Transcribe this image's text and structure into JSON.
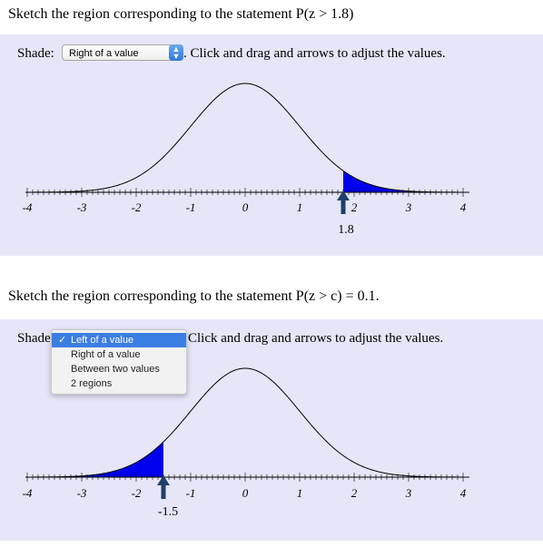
{
  "problem1": {
    "title": "Sketch the region corresponding to the statement P(z > 1.8)",
    "shade_label": "Shade:",
    "select_value": "Right of a value",
    "instructions": ". Click and drag and arrows to adjust the values.",
    "marker_value": "1.8",
    "axis_ticks": [
      "-4",
      "-3",
      "-2",
      "-1",
      "0",
      "1",
      "2",
      "3",
      "4"
    ]
  },
  "problem2": {
    "title": "Sketch the region corresponding to the statement P(z > c) = 0.1.",
    "shade_label": "Shade",
    "instructions": "Click and drag and arrows to adjust the values.",
    "marker_value": "-1.5",
    "axis_ticks": [
      "-4",
      "-3",
      "-2",
      "-1",
      "0",
      "1",
      "2",
      "3",
      "4"
    ],
    "dropdown_options": [
      "Left of a value",
      "Right of a value",
      "Between two values",
      "2 regions"
    ],
    "selected_option": "Left of a value",
    "check_mark": "✓"
  },
  "colors": {
    "panel_bg": "#e6e6f8",
    "shade_fill": "#0000ee",
    "marker_arrow": "#1f3f6b"
  }
}
